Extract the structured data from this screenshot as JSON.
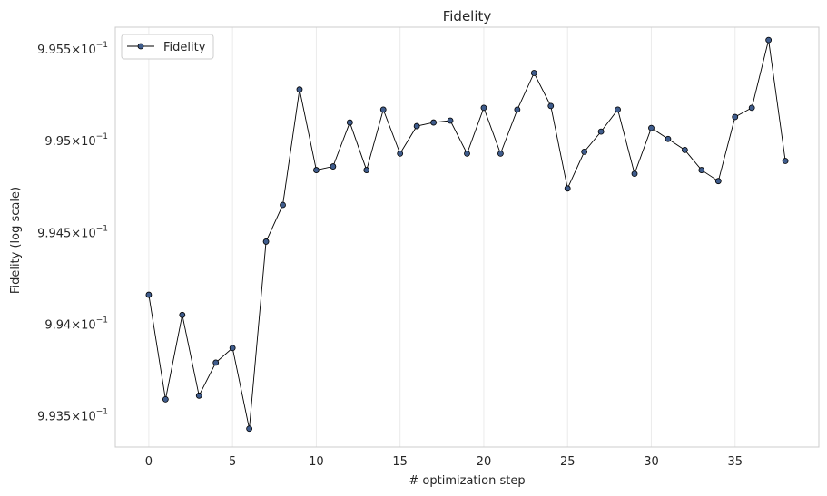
{
  "chart_data": {
    "type": "line",
    "title": "Fidelity",
    "xlabel": "# optimization step",
    "ylabel": "Fidelity (log scale)",
    "yscale": "log",
    "xlim": [
      -2,
      40
    ],
    "ylim": [
      0.99333,
      0.99562
    ],
    "xticks": [
      0,
      5,
      10,
      15,
      20,
      25,
      30,
      35
    ],
    "yticks": [
      {
        "value": 0.9935,
        "base": "9.935",
        "exp": "−1"
      },
      {
        "value": 0.994,
        "base": "9.94",
        "exp": "−1"
      },
      {
        "value": 0.9945,
        "base": "9.945",
        "exp": "−1"
      },
      {
        "value": 0.995,
        "base": "9.95",
        "exp": "−1"
      },
      {
        "value": 0.9955,
        "base": "9.955",
        "exp": "−1"
      }
    ],
    "grid": true,
    "legend_position": "top-left",
    "series": [
      {
        "name": "Fidelity",
        "line_color": "#000000",
        "marker_color": "#3f5c8c",
        "x": [
          0,
          1,
          2,
          3,
          4,
          5,
          6,
          7,
          8,
          9,
          10,
          11,
          12,
          13,
          14,
          15,
          16,
          17,
          18,
          19,
          20,
          21,
          22,
          23,
          24,
          25,
          26,
          27,
          28,
          29,
          30,
          31,
          32,
          33,
          34,
          35,
          36,
          37,
          38
        ],
        "y": [
          0.99416,
          0.99359,
          0.99405,
          0.99361,
          0.99379,
          0.99387,
          0.99343,
          0.99445,
          0.99465,
          0.99528,
          0.99484,
          0.99486,
          0.9951,
          0.99484,
          0.99517,
          0.99493,
          0.99508,
          0.9951,
          0.99511,
          0.99493,
          0.99518,
          0.99493,
          0.99517,
          0.99537,
          0.99519,
          0.99474,
          0.99494,
          0.99505,
          0.99517,
          0.99482,
          0.99507,
          0.99501,
          0.99495,
          0.99484,
          0.99478,
          0.99513,
          0.99518,
          0.99555,
          0.99489
        ]
      }
    ]
  }
}
